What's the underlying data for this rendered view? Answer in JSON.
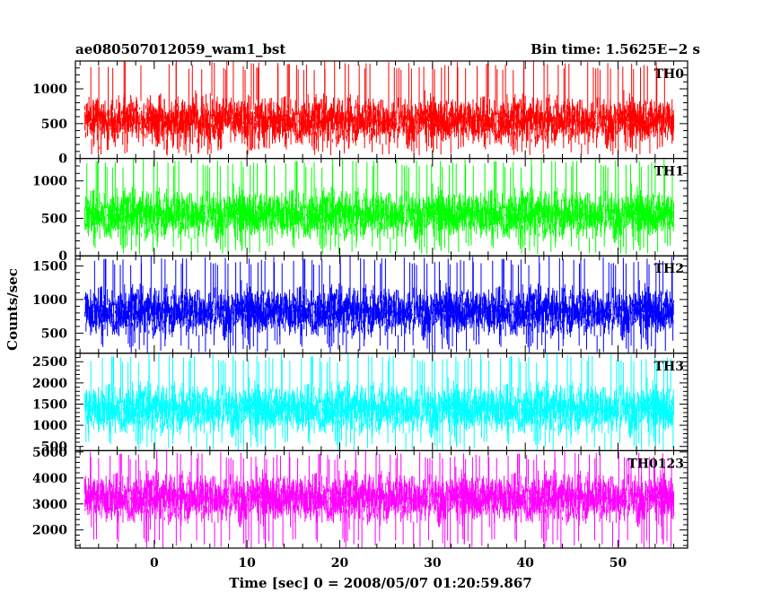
{
  "header": {
    "left_title": "ae080507012059_wam1_bst",
    "right_title": "Bin time: 1.5625E−2 s"
  },
  "axes": {
    "ylabel": "Counts/sec",
    "xlabel": "Time [sec] 0 = 2008/05/07 01:20:59.867"
  },
  "chart_data": {
    "type": "line",
    "x_range": [
      -8.5,
      57.5
    ],
    "data_x_range": [
      -7.5,
      56.0
    ],
    "bin_time_s": 0.015625,
    "x_ticks": [
      0,
      10,
      20,
      30,
      40,
      50
    ],
    "x_minor_step": 2,
    "panels": [
      {
        "name": "TH0",
        "color": "#ff0000",
        "ylim": [
          0,
          1400
        ],
        "y_ticks": [
          0,
          500,
          1000
        ],
        "y_minor_step": 100,
        "mean": 550,
        "low": 40,
        "high": 1400
      },
      {
        "name": "TH1",
        "color": "#00ff00",
        "ylim": [
          0,
          1300
        ],
        "y_ticks": [
          0,
          500,
          1000
        ],
        "y_minor_step": 100,
        "mean": 560,
        "low": 20,
        "high": 1300
      },
      {
        "name": "TH2",
        "color": "#0000ff",
        "ylim": [
          200,
          1650
        ],
        "y_ticks": [
          500,
          1000,
          1500
        ],
        "y_minor_step": 100,
        "mean": 830,
        "low": 200,
        "high": 1650
      },
      {
        "name": "TH3",
        "color": "#00ffff",
        "ylim": [
          400,
          2700
        ],
        "y_ticks": [
          500,
          1000,
          1500,
          2000,
          2500
        ],
        "y_minor_step": 100,
        "mean": 1400,
        "low": 400,
        "high": 2700
      },
      {
        "name": "TH0123",
        "color": "#ff00ff",
        "ylim": [
          1300,
          5050
        ],
        "y_ticks": [
          2000,
          3000,
          4000,
          5000
        ],
        "y_minor_step": 200,
        "mean": 3250,
        "low": 1300,
        "high": 5050
      }
    ]
  }
}
